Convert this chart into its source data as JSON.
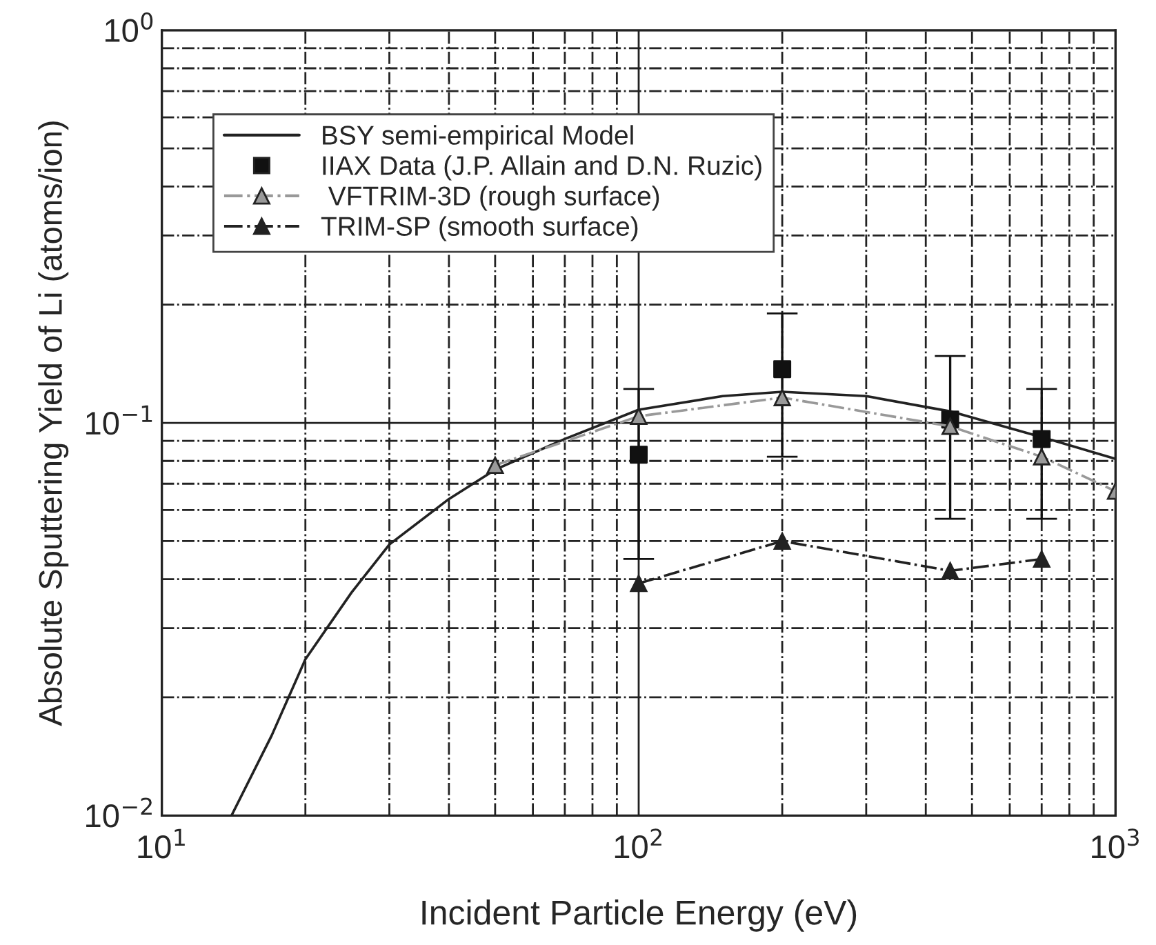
{
  "chart_data": {
    "type": "line",
    "xlabel": "Incident Particle Energy (eV)",
    "ylabel": "Absolute Sputtering Yield of Li (atoms/ion)",
    "log": "xy",
    "xlim": [
      10,
      1000
    ],
    "ylim": [
      0.01,
      1
    ],
    "xticks": [
      {
        "value": 10,
        "label": "10$^{1}$"
      },
      {
        "value": 20,
        "label": null
      },
      {
        "value": 30,
        "label": null
      },
      {
        "value": 40,
        "label": null
      },
      {
        "value": 50,
        "label": null
      },
      {
        "value": 60,
        "label": null
      },
      {
        "value": 70,
        "label": null
      },
      {
        "value": 80,
        "label": null
      },
      {
        "value": 90,
        "label": null
      },
      {
        "value": 100,
        "label": "10$^{2}$"
      },
      {
        "value": 200,
        "label": null
      },
      {
        "value": 300,
        "label": null
      },
      {
        "value": 400,
        "label": null
      },
      {
        "value": 500,
        "label": null
      },
      {
        "value": 600,
        "label": null
      },
      {
        "value": 700,
        "label": null
      },
      {
        "value": 800,
        "label": null
      },
      {
        "value": 900,
        "label": null
      },
      {
        "value": 1000,
        "label": "10$^{3}$"
      }
    ],
    "yticks": [
      {
        "value": 0.01,
        "label": "10$^{−2}$"
      },
      {
        "value": 0.02,
        "label": null
      },
      {
        "value": 0.03,
        "label": null
      },
      {
        "value": 0.04,
        "label": null
      },
      {
        "value": 0.05,
        "label": null
      },
      {
        "value": 0.06,
        "label": null
      },
      {
        "value": 0.07,
        "label": null
      },
      {
        "value": 0.08,
        "label": null
      },
      {
        "value": 0.09,
        "label": null
      },
      {
        "value": 0.1,
        "label": "10$^{−1}$"
      },
      {
        "value": 0.2,
        "label": null
      },
      {
        "value": 0.3,
        "label": null
      },
      {
        "value": 0.4,
        "label": null
      },
      {
        "value": 0.5,
        "label": null
      },
      {
        "value": 0.6,
        "label": null
      },
      {
        "value": 0.7,
        "label": null
      },
      {
        "value": 0.8,
        "label": null
      },
      {
        "value": 0.9,
        "label": null
      },
      {
        "value": 1,
        "label": "10$^{0}$"
      }
    ],
    "grid": true,
    "legend": "top left",
    "series": [
      {
        "name": "BSY semi-empirical Model",
        "color": "#222222",
        "marker": "none",
        "line_style": "solid",
        "x": [
          14,
          17,
          20,
          25,
          30,
          40,
          50,
          70,
          100,
          150,
          200,
          300,
          450,
          700,
          1000
        ],
        "values": [
          0.01,
          0.016,
          0.025,
          0.037,
          0.049,
          0.064,
          0.076,
          0.091,
          0.108,
          0.117,
          0.12,
          0.117,
          0.107,
          0.092,
          0.081
        ]
      },
      {
        "name": "IIAX Data (J.P. Allain and D.N. Ruzic)",
        "type": "scatter",
        "color": "#111111",
        "marker": "square",
        "x": [
          100,
          200,
          450,
          700
        ],
        "values": [
          0.083,
          0.137,
          0.102,
          0.091
        ],
        "errors": [
          [
            0.045,
            0.122
          ],
          [
            0.082,
            0.19
          ],
          [
            0.057,
            0.148
          ],
          [
            0.057,
            0.122
          ]
        ]
      },
      {
        "name": " VFTRIM-3D (rough surface)",
        "color": "#999999",
        "marker": "triangle",
        "line_style": "dashdot",
        "x": [
          50,
          100,
          200,
          450,
          700,
          1000
        ],
        "values": [
          0.078,
          0.104,
          0.116,
          0.098,
          0.082,
          0.067
        ]
      },
      {
        "name": "TRIM-SP (smooth surface)",
        "color": "#222222",
        "marker": "triangle",
        "line_style": "dashdot",
        "x": [
          100,
          200,
          450,
          700
        ],
        "values": [
          0.039,
          0.05,
          0.042,
          0.045
        ]
      }
    ]
  }
}
